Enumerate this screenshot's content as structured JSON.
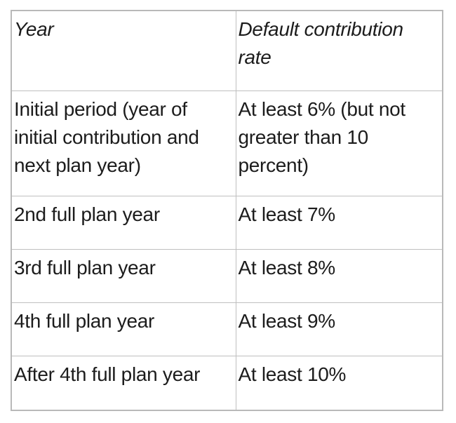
{
  "colors": {
    "background": "#ffffff",
    "border": "#bfbfbf",
    "text": "#1c1c1c"
  },
  "table": {
    "columns": [
      {
        "header": "Year"
      },
      {
        "header": "Default contribution\nrate"
      }
    ],
    "rows": [
      {
        "year": "Initial period (year of\ninitial contribution and\nnext plan year)",
        "rate": "At least 6% (but not\ngreater than 10\npercent)"
      },
      {
        "year": "2nd full plan year",
        "rate": "At least 7%"
      },
      {
        "year": "3rd full plan year",
        "rate": "At least 8%"
      },
      {
        "year": "4th full plan year",
        "rate": "At least 9%"
      },
      {
        "year": "After 4th full plan year",
        "rate": "At least 10%"
      }
    ]
  }
}
